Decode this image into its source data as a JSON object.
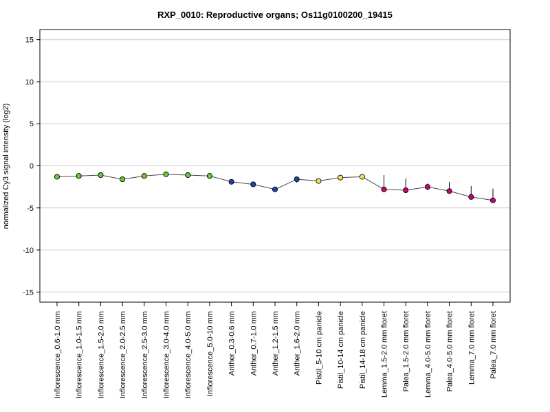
{
  "chart_data": {
    "type": "line",
    "title": "RXP_0010: Reproductive organs; Os11g0100200_19415",
    "ylabel": "normalized Cy3 signal intensity (log2)",
    "xlabel": "",
    "ylim": [
      -16.2,
      16.2
    ],
    "yticks": [
      15,
      10,
      5,
      0,
      -5,
      -10,
      -15
    ],
    "grid": true,
    "categories": [
      "Inflorescence_0.6-1.0 mm",
      "Inflorescence_1.0-1.5 mm",
      "Inflorescence_1.5-2.0 mm",
      "Inflorescence_2.0-2.5 mm",
      "Inflorescence_2.5-3.0 mm",
      "Inflorescence_3.0-4.0 mm",
      "Inflorescence_4.0-5.0 mm",
      "Inflorescence_5.0-10 mm",
      "Anther_0.3-0.6 mm",
      "Anther_0.7-1.0 mm",
      "Anther_1.2-1.5 mm",
      "Anther_1.6-2.0 mm",
      "Pistil_5-10 cm panicle",
      "Pistil_10-14 cm panicle",
      "Pistil_14-18 cm panicle",
      "Lemma_1.5-2.0 mm floret",
      "Palea_1.5-2.0 mm floret",
      "Lemma_4.0-5.0 mm floret",
      "Palea_4.0-5.0 mm floret",
      "Lemma_7.0 mm floret",
      "Palea_7.0 mm floret"
    ],
    "values": [
      -1.3,
      -1.2,
      -1.1,
      -1.6,
      -1.2,
      -1.0,
      -1.1,
      -1.2,
      -1.9,
      -2.2,
      -2.8,
      -1.6,
      -1.8,
      -1.4,
      -1.3,
      -2.8,
      -2.9,
      -2.5,
      -3.0,
      -3.7,
      -4.1
    ],
    "error_upper": [
      -1.1,
      -0.9,
      -0.9,
      -1.4,
      -0.9,
      -0.7,
      -0.9,
      -0.9,
      -1.7,
      -1.9,
      -2.5,
      -1.4,
      -1.5,
      -1.2,
      -1.1,
      -1.1,
      -1.5,
      -2.1,
      -1.9,
      -2.4,
      -2.7
    ],
    "error_lower": [
      -1.5,
      -1.5,
      -1.3,
      -1.8,
      -1.5,
      -1.3,
      -1.3,
      -1.5,
      -2.1,
      -2.5,
      -3.1,
      -2.0,
      -2.1,
      -1.6,
      -1.5,
      -3.0,
      -3.1,
      -2.9,
      -3.3,
      -3.9,
      -4.4
    ],
    "point_colors": [
      "#66cc33",
      "#66cc33",
      "#66cc33",
      "#66cc33",
      "#66cc33",
      "#66cc33",
      "#66cc33",
      "#66cc33",
      "#2244aa",
      "#2244aa",
      "#2244aa",
      "#2244aa",
      "#f2e05a",
      "#f2e05a",
      "#f2e05a",
      "#cc0077",
      "#cc0077",
      "#cc0077",
      "#cc0077",
      "#cc0077",
      "#cc0077"
    ]
  }
}
